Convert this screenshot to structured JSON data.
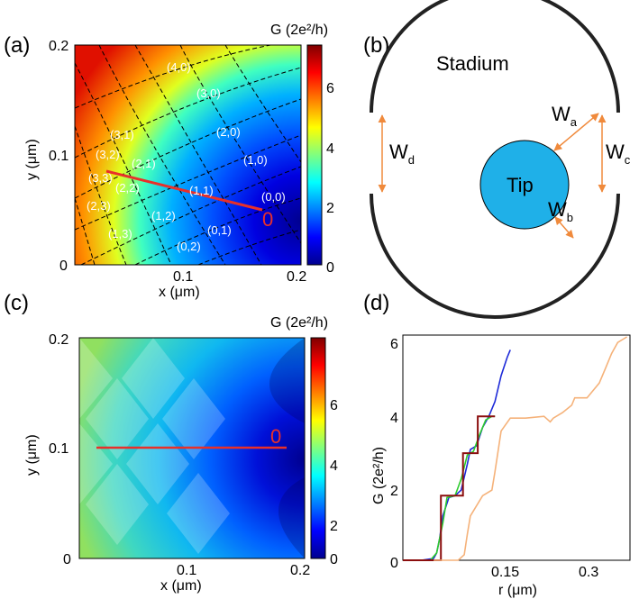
{
  "panel_a": {
    "label": "(a)",
    "cbar_title": "G (2e²/h)",
    "cbar_ticks": [
      "6",
      "4",
      "2",
      "0"
    ],
    "xlabel": "x (μm)",
    "ylabel": "y (μm)",
    "xticks": [
      "0.1",
      "0.2"
    ],
    "yticks": [
      "0.2",
      "0.1",
      "0"
    ],
    "zero_label": "0",
    "modes": [
      "(4,0)",
      "(3,0)",
      "(2,0)",
      "(1,0)",
      "(0,0)",
      "(3,1)",
      "(3,2)",
      "(2,1)",
      "(3,3)",
      "(2,2)",
      "(1,1)",
      "(2,3)",
      "(1,2)",
      "(0,1)",
      "(1,3)",
      "(0,2)"
    ]
  },
  "panel_b": {
    "label": "(b)",
    "stadium": "Stadium",
    "tip": "Tip",
    "wa": "W",
    "wa_sub": "a",
    "wb": "W",
    "wb_sub": "b",
    "wc": "W",
    "wc_sub": "c",
    "wd": "W",
    "wd_sub": "d"
  },
  "panel_c": {
    "label": "(c)",
    "cbar_title": "G (2e²/h)",
    "cbar_ticks": [
      "6",
      "4",
      "2",
      "0"
    ],
    "xlabel": "x (μm)",
    "ylabel": "y (μm)",
    "xticks": [
      "0.1",
      "0.2"
    ],
    "yticks": [
      "0.2",
      "0.1",
      "0"
    ],
    "zero_label": "0"
  },
  "panel_d": {
    "label": "(d)",
    "xlabel": "r (μm)",
    "ylabel": "G (2e²/h)",
    "xticks": [
      "0.15",
      "0.3"
    ],
    "yticks": [
      "6",
      "4",
      "2",
      "0"
    ]
  },
  "colors": {
    "red_line": "#e8302a",
    "blue_curve": "#1d2ad8",
    "green_curve": "#2ecc2e",
    "darkred_curve": "#8b0e0e",
    "orange_curve": "#f5b27a",
    "tip_fill": "#1fb0e8",
    "arrow": "#f08a3c"
  },
  "chart_data": [
    {
      "type": "heatmap",
      "panel": "(a)",
      "xlabel": "x (μm)",
      "ylabel": "y (μm)",
      "xlim": [
        0,
        0.2
      ],
      "ylim": [
        0,
        0.2
      ],
      "colorbar": {
        "label": "G (2e²/h)",
        "range": [
          0,
          7.2
        ],
        "ticks": [
          0,
          2,
          4,
          6
        ]
      },
      "trajectory": [
        [
          0.035,
          0.09
        ],
        [
          0.165,
          0.05
        ]
      ]
    },
    {
      "type": "heatmap",
      "panel": "(c)",
      "xlabel": "x (μm)",
      "ylabel": "y (μm)",
      "xlim": [
        0,
        0.2
      ],
      "ylim": [
        0,
        0.2
      ],
      "colorbar": {
        "label": "G (2e²/h)",
        "range": [
          0,
          7.2
        ],
        "ticks": [
          0,
          2,
          4,
          6
        ]
      },
      "trajectory": [
        [
          0.015,
          0.1
        ],
        [
          0.185,
          0.1
        ]
      ]
    },
    {
      "type": "line",
      "panel": "(d)",
      "xlabel": "r (μm)",
      "ylabel": "G (2e²/h)",
      "xlim": [
        0.0,
        0.37
      ],
      "ylim": [
        0,
        6.1
      ],
      "series": [
        {
          "color": "blue",
          "x": [
            0.0,
            0.03,
            0.05,
            0.055,
            0.06,
            0.065,
            0.075,
            0.085,
            0.095,
            0.105,
            0.11,
            0.12,
            0.13,
            0.14,
            0.15,
            0.16,
            0.17,
            0.175
          ],
          "y": [
            0.0,
            0.0,
            0.05,
            0.2,
            0.6,
            1.2,
            1.7,
            1.75,
            1.9,
            2.6,
            3.0,
            3.1,
            3.6,
            3.9,
            4.3,
            5.0,
            5.5,
            5.7
          ]
        },
        {
          "color": "green",
          "x": [
            0.0,
            0.045,
            0.055,
            0.065,
            0.072,
            0.085,
            0.095,
            0.105,
            0.115,
            0.125,
            0.135,
            0.145,
            0.15
          ],
          "y": [
            0.0,
            0.0,
            0.2,
            1.0,
            1.7,
            1.75,
            2.2,
            2.85,
            2.95,
            3.4,
            3.8,
            3.9,
            3.9
          ]
        },
        {
          "color": "darkred",
          "x": [
            0.0,
            0.062,
            0.062,
            0.098,
            0.098,
            0.122,
            0.122,
            0.15
          ],
          "y": [
            0.0,
            0.0,
            1.75,
            1.75,
            2.9,
            2.9,
            3.9,
            3.9
          ]
        },
        {
          "color": "orange",
          "x": [
            0.05,
            0.09,
            0.1,
            0.105,
            0.11,
            0.13,
            0.145,
            0.15,
            0.16,
            0.175,
            0.185,
            0.2,
            0.23,
            0.24,
            0.245,
            0.26,
            0.275,
            0.28,
            0.3,
            0.32,
            0.33,
            0.34,
            0.35,
            0.365
          ],
          "y": [
            0.0,
            0.0,
            0.15,
            0.7,
            1.2,
            1.75,
            1.9,
            2.4,
            3.5,
            3.85,
            3.85,
            3.85,
            3.9,
            3.75,
            3.85,
            4.0,
            4.2,
            4.4,
            4.4,
            4.8,
            5.2,
            5.6,
            5.9,
            6.05
          ]
        }
      ]
    }
  ]
}
